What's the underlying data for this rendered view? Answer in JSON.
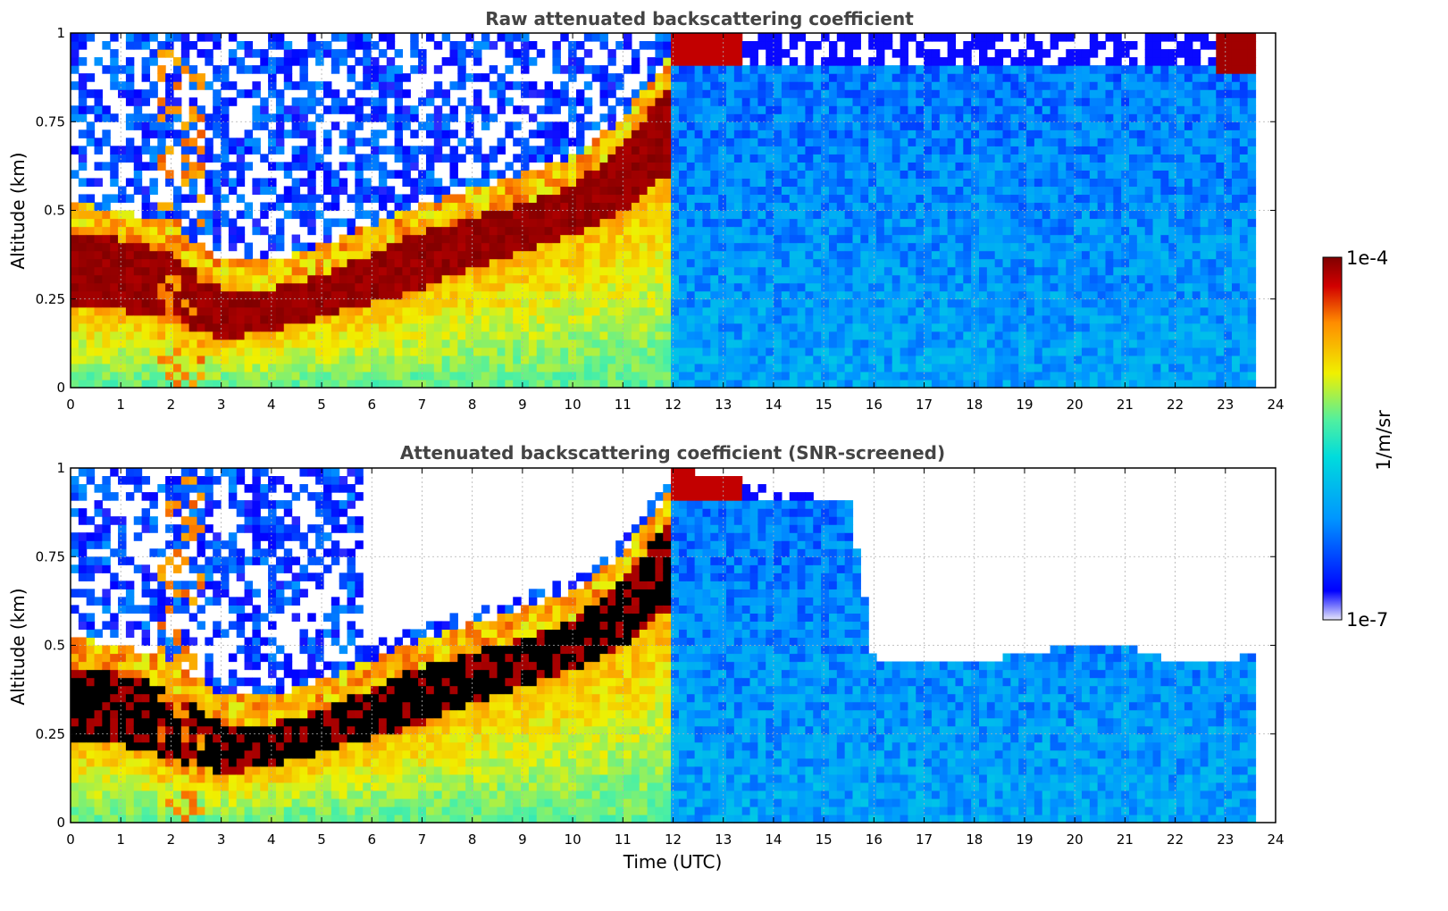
{
  "chart_data": [
    {
      "type": "heatmap",
      "title": "Raw attenuated backscattering coefficient",
      "xlabel": "",
      "ylabel": "Altitude (km)",
      "xlim": [
        0,
        24
      ],
      "ylim": [
        0,
        1
      ],
      "xticks": [
        "0",
        "1",
        "2",
        "3",
        "4",
        "5",
        "6",
        "7",
        "8",
        "9",
        "10",
        "11",
        "12",
        "13",
        "14",
        "15",
        "16",
        "17",
        "18",
        "19",
        "20",
        "21",
        "22",
        "23",
        "24"
      ],
      "yticks": [
        "0",
        "0.25",
        "0.5",
        "0.75",
        "1"
      ],
      "grid": true,
      "data_end_time": 23.6,
      "layer_top_profile_km": {
        "time": [
          0,
          1,
          2,
          3,
          4,
          5,
          6,
          7,
          8,
          9,
          10,
          11,
          11.9
        ],
        "top": [
          0.44,
          0.42,
          0.38,
          0.28,
          0.28,
          0.32,
          0.38,
          0.44,
          0.48,
          0.52,
          0.57,
          0.68,
          0.85
        ],
        "bottom": [
          0.24,
          0.22,
          0.18,
          0.14,
          0.16,
          0.2,
          0.24,
          0.28,
          0.34,
          0.38,
          0.43,
          0.5,
          0.6
        ]
      }
    },
    {
      "type": "heatmap",
      "title": "Attenuated backscattering coefficient (SNR-screened)",
      "xlabel": "Time (UTC)",
      "ylabel": "Altitude (km)",
      "xlim": [
        0,
        24
      ],
      "ylim": [
        0,
        1
      ],
      "xticks": [
        "0",
        "1",
        "2",
        "3",
        "4",
        "5",
        "6",
        "7",
        "8",
        "9",
        "10",
        "11",
        "12",
        "13",
        "14",
        "15",
        "16",
        "17",
        "18",
        "19",
        "20",
        "21",
        "22",
        "23",
        "24"
      ],
      "yticks": [
        "0",
        "0.25",
        "0.5",
        "0.75",
        "1"
      ],
      "grid": true,
      "data_end_time": 23.6,
      "screened_top_km": {
        "time": [
          12,
          14,
          15.5,
          16,
          18,
          19,
          20,
          21,
          22,
          23.6
        ],
        "top": [
          1.0,
          0.95,
          0.9,
          0.46,
          0.46,
          0.47,
          0.51,
          0.5,
          0.45,
          0.47
        ]
      }
    }
  ],
  "colorbar": {
    "label": "1/m/sr",
    "max_label": "1e-4",
    "min_label": "1e-7",
    "scale": "log",
    "colors": [
      "#e6e6fa",
      "#0000ff",
      "#0096ff",
      "#00dcdc",
      "#50f0a0",
      "#f0f000",
      "#ff8c00",
      "#d20000",
      "#800000"
    ]
  }
}
